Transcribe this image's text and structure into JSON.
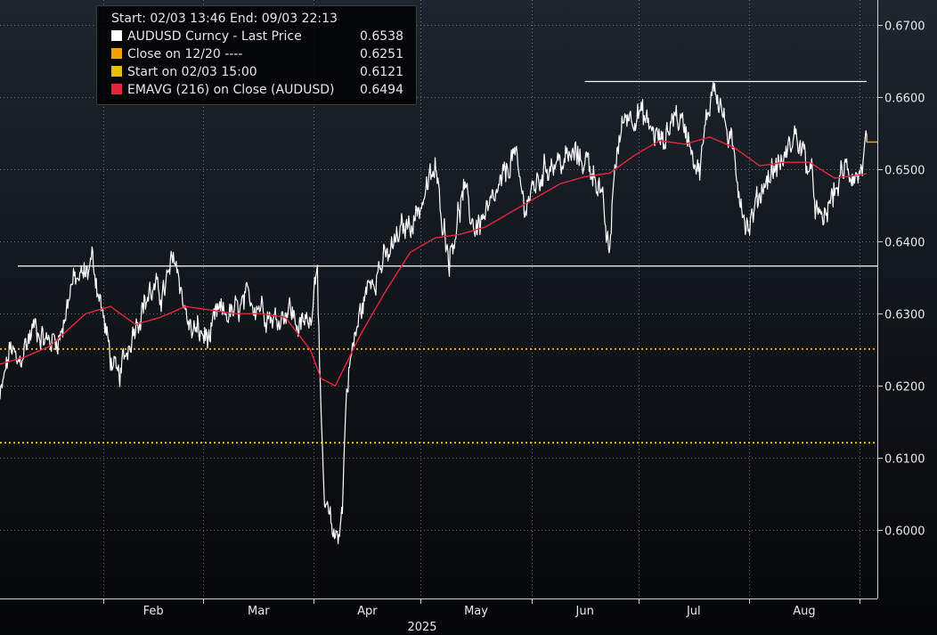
{
  "chart_data": {
    "type": "line",
    "title": "",
    "xlabel": "2025",
    "ylabel": "",
    "x_tick_labels": [
      "Feb",
      "Mar",
      "Apr",
      "May",
      "Jun",
      "Jul",
      "Aug"
    ],
    "y_tick_labels": [
      "0.6700",
      "0.6600",
      "0.6500",
      "0.6400",
      "0.6300",
      "0.6200",
      "0.6100",
      "0.6000"
    ],
    "ylim": [
      0.5905,
      0.6735
    ],
    "xlim": [
      "2025-01-03",
      "2025-09-06"
    ],
    "grid": true,
    "legend_position": "top-left",
    "legend": {
      "header_start_label": "Start:",
      "header_start": "02/03 13:46",
      "header_end_label": "End:",
      "header_end": "09/03 22:13",
      "entries": [
        {
          "label": "AUDUSD Curncy  - Last Price",
          "value": "0.6538",
          "color": "#ffffff"
        },
        {
          "label": "Close on 12/20 ----",
          "value": "0.6251",
          "color": "#f5a000"
        },
        {
          "label": "Start on 02/03 15:00",
          "value": "0.6121",
          "color": "#e8c000"
        },
        {
          "label": "EMAVG (216)  on Close (AUDUSD)",
          "value": "0.6494",
          "color": "#e8243c"
        }
      ]
    },
    "series": [
      {
        "name": "AUDUSD Curncy  - Last Price",
        "color": "#ffffff",
        "x": [
          "2025-01-03",
          "2025-01-06",
          "2025-01-08",
          "2025-01-10",
          "2025-01-13",
          "2025-01-16",
          "2025-01-20",
          "2025-01-23",
          "2025-01-27",
          "2025-01-29",
          "2025-02-03",
          "2025-02-05",
          "2025-02-10",
          "2025-02-14",
          "2025-02-18",
          "2025-02-21",
          "2025-02-25",
          "2025-03-03",
          "2025-03-05",
          "2025-03-10",
          "2025-03-14",
          "2025-03-18",
          "2025-03-21",
          "2025-03-25",
          "2025-03-28",
          "2025-03-31",
          "2025-04-02",
          "2025-04-03",
          "2025-04-04",
          "2025-04-07",
          "2025-04-08",
          "2025-04-09",
          "2025-04-10",
          "2025-04-11",
          "2025-04-14",
          "2025-04-17",
          "2025-04-22",
          "2025-04-25",
          "2025-04-30",
          "2025-05-05",
          "2025-05-06",
          "2025-05-09",
          "2025-05-13",
          "2025-05-16",
          "2025-05-20",
          "2025-05-23",
          "2025-05-27",
          "2025-05-30",
          "2025-06-03",
          "2025-06-06",
          "2025-06-10",
          "2025-06-13",
          "2025-06-17",
          "2025-06-20",
          "2025-06-23",
          "2025-06-24",
          "2025-06-27",
          "2025-07-01",
          "2025-07-04",
          "2025-07-08",
          "2025-07-11",
          "2025-07-15",
          "2025-07-18",
          "2025-07-22",
          "2025-07-24",
          "2025-07-28",
          "2025-07-31",
          "2025-08-01",
          "2025-08-05",
          "2025-08-08",
          "2025-08-11",
          "2025-08-14",
          "2025-08-18",
          "2025-08-21",
          "2025-08-22",
          "2025-08-25",
          "2025-08-28",
          "2025-09-01",
          "2025-09-03"
        ],
        "values": [
          0.618,
          0.6255,
          0.6225,
          0.6255,
          0.6285,
          0.626,
          0.627,
          0.634,
          0.6355,
          0.6375,
          0.624,
          0.6205,
          0.629,
          0.633,
          0.633,
          0.638,
          0.628,
          0.6265,
          0.63,
          0.63,
          0.632,
          0.631,
          0.629,
          0.631,
          0.628,
          0.6295,
          0.638,
          0.614,
          0.603,
          0.599,
          0.6,
          0.603,
          0.618,
          0.623,
          0.63,
          0.635,
          0.638,
          0.641,
          0.644,
          0.65,
          0.6465,
          0.638,
          0.647,
          0.642,
          0.644,
          0.647,
          0.6525,
          0.645,
          0.6485,
          0.651,
          0.651,
          0.652,
          0.651,
          0.648,
          0.6375,
          0.649,
          0.6575,
          0.658,
          0.656,
          0.6535,
          0.658,
          0.655,
          0.6495,
          0.6625,
          0.659,
          0.651,
          0.643,
          0.642,
          0.648,
          0.65,
          0.6515,
          0.655,
          0.65,
          0.642,
          0.643,
          0.647,
          0.65,
          0.649,
          0.6538
        ]
      },
      {
        "name": "EMAVG (216)  on Close (AUDUSD)",
        "color": "#e8243c",
        "x": [
          "2025-01-03",
          "2025-01-10",
          "2025-01-17",
          "2025-01-27",
          "2025-02-03",
          "2025-02-10",
          "2025-02-17",
          "2025-02-24",
          "2025-03-03",
          "2025-03-10",
          "2025-03-17",
          "2025-03-24",
          "2025-03-31",
          "2025-04-03",
          "2025-04-07",
          "2025-04-10",
          "2025-04-14",
          "2025-04-21",
          "2025-04-28",
          "2025-05-05",
          "2025-05-12",
          "2025-05-19",
          "2025-05-26",
          "2025-06-02",
          "2025-06-09",
          "2025-06-16",
          "2025-06-23",
          "2025-06-30",
          "2025-07-07",
          "2025-07-14",
          "2025-07-21",
          "2025-07-28",
          "2025-08-04",
          "2025-08-11",
          "2025-08-18",
          "2025-08-25",
          "2025-09-03"
        ],
        "values": [
          0.623,
          0.624,
          0.6255,
          0.63,
          0.631,
          0.6285,
          0.6295,
          0.631,
          0.6305,
          0.63,
          0.63,
          0.6295,
          0.625,
          0.621,
          0.62,
          0.623,
          0.627,
          0.633,
          0.6385,
          0.6405,
          0.641,
          0.642,
          0.644,
          0.646,
          0.648,
          0.649,
          0.6495,
          0.652,
          0.654,
          0.6535,
          0.6545,
          0.653,
          0.6505,
          0.651,
          0.651,
          0.6488,
          0.6494
        ]
      }
    ],
    "reference_lines": [
      {
        "name": "Close on 12/20",
        "value": 0.6251,
        "color": "#f5a000",
        "style": "dotted"
      },
      {
        "name": "Start on 02/03 15:00",
        "value": 0.6121,
        "color": "#e8c000",
        "style": "dotted"
      },
      {
        "name": "resistance",
        "value": 0.6622,
        "color": "#ffffff",
        "style": "solid",
        "x_start": "2025-06-16",
        "x_end": "2025-09-03"
      },
      {
        "name": "support",
        "value": 0.6366,
        "color": "#ffffff",
        "style": "solid",
        "x_start": "2025-01-08",
        "x_end": "2025-09-06"
      }
    ],
    "annotations": [
      {
        "name": "last-price-marker",
        "value": 0.6538,
        "color": "#f5a000",
        "x_start": "2025-09-03",
        "x_end": "2025-09-06"
      }
    ]
  }
}
